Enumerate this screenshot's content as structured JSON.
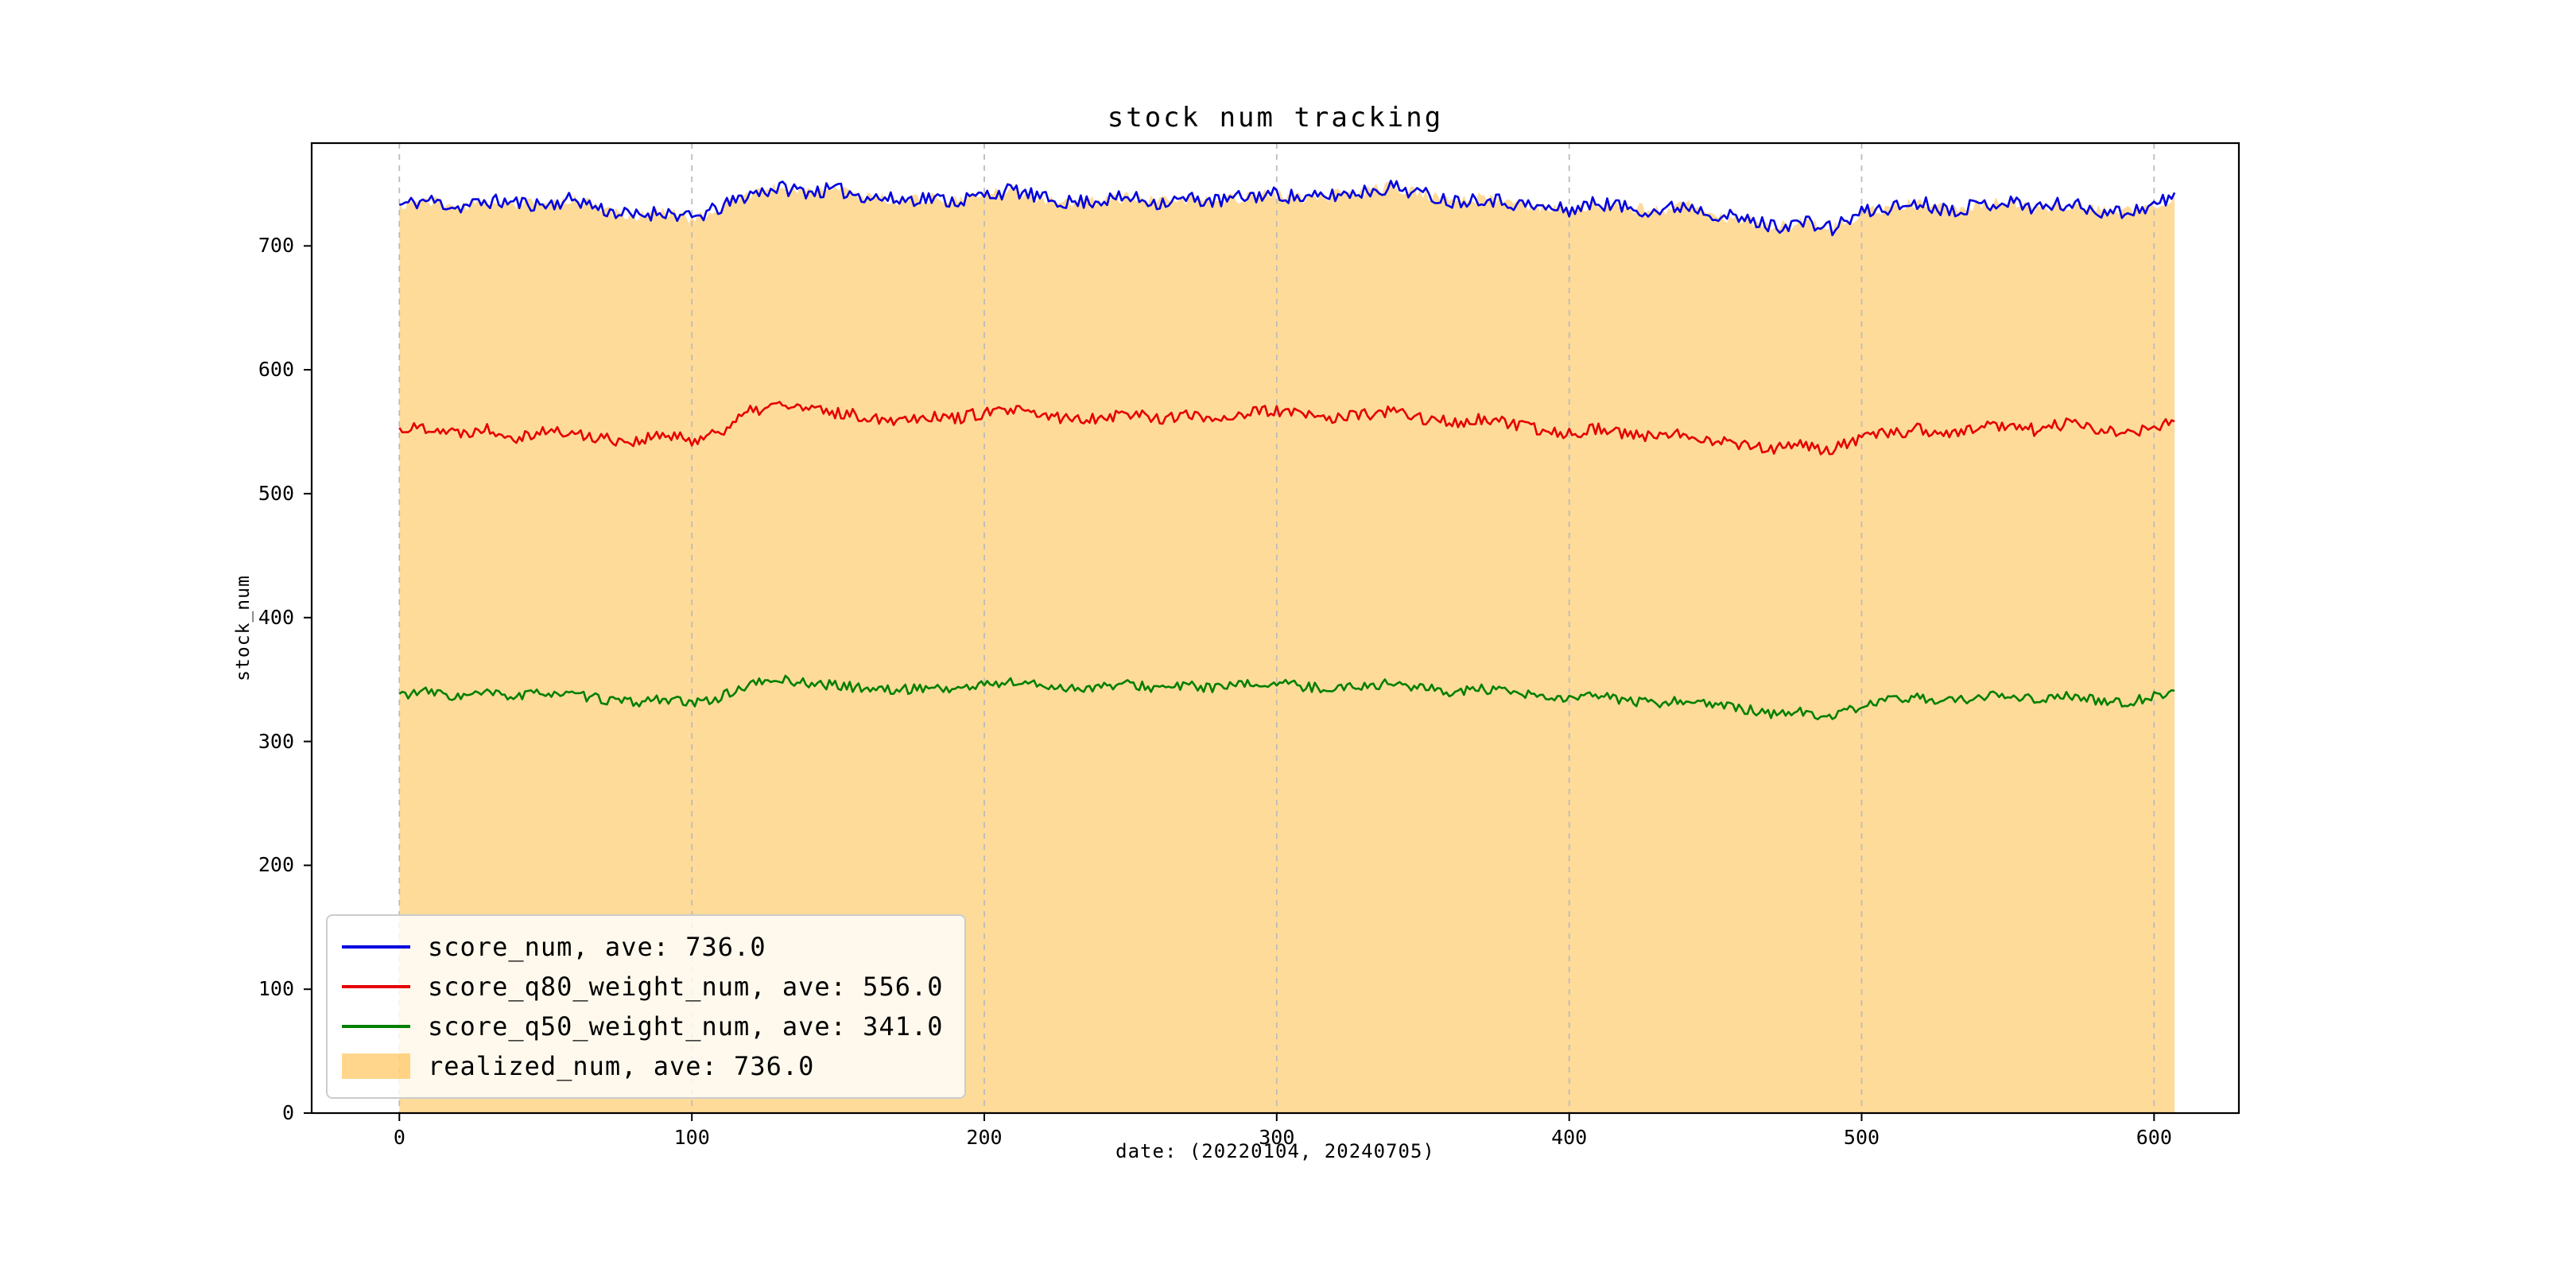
{
  "chart_data": {
    "type": "line",
    "title": "stock num tracking",
    "xlabel": "date: (20220104, 20240705)",
    "ylabel": "stock_num",
    "xlim": [
      -30,
      629
    ],
    "ylim": [
      0,
      783
    ],
    "xticks": [
      0,
      100,
      200,
      300,
      400,
      500,
      600
    ],
    "yticks": [
      0,
      100,
      200,
      300,
      400,
      500,
      600,
      700
    ],
    "x_range": [
      0,
      607
    ],
    "grid": {
      "axis": "x",
      "style": "dashed",
      "color": "#bcbcbc"
    },
    "frame_color": "#000000",
    "series": [
      {
        "name": "score_num, ave: 736.0",
        "average": 736.0,
        "color": "#0000e0",
        "noise": 6,
        "seed": 11,
        "control_points": [
          [
            0,
            733
          ],
          [
            10,
            737
          ],
          [
            20,
            731
          ],
          [
            30,
            736
          ],
          [
            40,
            735
          ],
          [
            50,
            733
          ],
          [
            60,
            738
          ],
          [
            70,
            729
          ],
          [
            80,
            724
          ],
          [
            90,
            728
          ],
          [
            100,
            722
          ],
          [
            110,
            731
          ],
          [
            120,
            742
          ],
          [
            130,
            747
          ],
          [
            140,
            744
          ],
          [
            150,
            745
          ],
          [
            160,
            740
          ],
          [
            170,
            737
          ],
          [
            180,
            739
          ],
          [
            190,
            736
          ],
          [
            200,
            741
          ],
          [
            210,
            745
          ],
          [
            220,
            738
          ],
          [
            230,
            735
          ],
          [
            240,
            737
          ],
          [
            250,
            739
          ],
          [
            260,
            735
          ],
          [
            270,
            738
          ],
          [
            280,
            736
          ],
          [
            290,
            740
          ],
          [
            300,
            742
          ],
          [
            310,
            738
          ],
          [
            320,
            741
          ],
          [
            330,
            744
          ],
          [
            340,
            748
          ],
          [
            350,
            742
          ],
          [
            360,
            736
          ],
          [
            370,
            739
          ],
          [
            380,
            735
          ],
          [
            390,
            731
          ],
          [
            400,
            729
          ],
          [
            410,
            735
          ],
          [
            420,
            731
          ],
          [
            430,
            728
          ],
          [
            440,
            733
          ],
          [
            450,
            726
          ],
          [
            460,
            721
          ],
          [
            470,
            716
          ],
          [
            480,
            719
          ],
          [
            490,
            714
          ],
          [
            500,
            727
          ],
          [
            510,
            731
          ],
          [
            520,
            735
          ],
          [
            530,
            729
          ],
          [
            540,
            733
          ],
          [
            550,
            736
          ],
          [
            560,
            731
          ],
          [
            570,
            734
          ],
          [
            580,
            729
          ],
          [
            590,
            727
          ],
          [
            600,
            733
          ],
          [
            607,
            740
          ]
        ]
      },
      {
        "name": "score_q80_weight_num, ave: 556.0",
        "average": 556.0,
        "color": "#e60000",
        "noise": 5,
        "seed": 22,
        "control_points": [
          [
            0,
            552
          ],
          [
            10,
            554
          ],
          [
            20,
            549
          ],
          [
            30,
            553
          ],
          [
            40,
            546
          ],
          [
            50,
            551
          ],
          [
            60,
            548
          ],
          [
            70,
            545
          ],
          [
            80,
            542
          ],
          [
            90,
            547
          ],
          [
            100,
            543
          ],
          [
            110,
            551
          ],
          [
            120,
            566
          ],
          [
            130,
            572
          ],
          [
            140,
            568
          ],
          [
            150,
            565
          ],
          [
            160,
            562
          ],
          [
            170,
            560
          ],
          [
            180,
            563
          ],
          [
            190,
            561
          ],
          [
            200,
            565
          ],
          [
            210,
            567
          ],
          [
            220,
            563
          ],
          [
            230,
            560
          ],
          [
            240,
            562
          ],
          [
            250,
            565
          ],
          [
            260,
            561
          ],
          [
            270,
            563
          ],
          [
            280,
            561
          ],
          [
            290,
            565
          ],
          [
            300,
            567
          ],
          [
            310,
            563
          ],
          [
            320,
            561
          ],
          [
            330,
            564
          ],
          [
            340,
            566
          ],
          [
            350,
            561
          ],
          [
            360,
            557
          ],
          [
            370,
            560
          ],
          [
            380,
            556
          ],
          [
            390,
            551
          ],
          [
            400,
            549
          ],
          [
            410,
            553
          ],
          [
            420,
            548
          ],
          [
            430,
            545
          ],
          [
            440,
            549
          ],
          [
            450,
            543
          ],
          [
            460,
            540
          ],
          [
            470,
            536
          ],
          [
            480,
            539
          ],
          [
            490,
            535
          ],
          [
            500,
            545
          ],
          [
            510,
            549
          ],
          [
            520,
            552
          ],
          [
            530,
            548
          ],
          [
            540,
            553
          ],
          [
            550,
            556
          ],
          [
            560,
            551
          ],
          [
            570,
            557
          ],
          [
            580,
            552
          ],
          [
            590,
            549
          ],
          [
            600,
            553
          ],
          [
            607,
            557
          ]
        ]
      },
      {
        "name": "score_q50_weight_num, ave: 341.0",
        "average": 341.0,
        "color": "#008000",
        "noise": 4,
        "seed": 33,
        "control_points": [
          [
            0,
            338
          ],
          [
            10,
            340
          ],
          [
            20,
            336
          ],
          [
            30,
            339
          ],
          [
            40,
            336
          ],
          [
            50,
            340
          ],
          [
            60,
            337
          ],
          [
            70,
            334
          ],
          [
            80,
            331
          ],
          [
            90,
            335
          ],
          [
            100,
            330
          ],
          [
            110,
            336
          ],
          [
            120,
            346
          ],
          [
            130,
            350
          ],
          [
            140,
            347
          ],
          [
            150,
            345
          ],
          [
            160,
            343
          ],
          [
            170,
            341
          ],
          [
            180,
            344
          ],
          [
            190,
            342
          ],
          [
            200,
            346
          ],
          [
            210,
            348
          ],
          [
            220,
            345
          ],
          [
            230,
            343
          ],
          [
            240,
            344
          ],
          [
            250,
            346
          ],
          [
            260,
            343
          ],
          [
            270,
            345
          ],
          [
            280,
            343
          ],
          [
            290,
            346
          ],
          [
            300,
            347
          ],
          [
            310,
            344
          ],
          [
            320,
            343
          ],
          [
            330,
            345
          ],
          [
            340,
            347
          ],
          [
            350,
            343
          ],
          [
            360,
            340
          ],
          [
            370,
            342
          ],
          [
            380,
            339
          ],
          [
            390,
            336
          ],
          [
            400,
            334
          ],
          [
            410,
            337
          ],
          [
            420,
            333
          ],
          [
            430,
            330
          ],
          [
            440,
            334
          ],
          [
            450,
            329
          ],
          [
            460,
            326
          ],
          [
            470,
            322
          ],
          [
            480,
            324
          ],
          [
            490,
            319
          ],
          [
            500,
            329
          ],
          [
            510,
            333
          ],
          [
            520,
            336
          ],
          [
            530,
            332
          ],
          [
            540,
            335
          ],
          [
            550,
            338
          ],
          [
            560,
            334
          ],
          [
            570,
            337
          ],
          [
            580,
            333
          ],
          [
            590,
            331
          ],
          [
            600,
            337
          ],
          [
            607,
            340
          ]
        ]
      }
    ],
    "fill": {
      "name": "realized_num, ave: 736.0",
      "average": 736.0,
      "color": "#ffa500",
      "opacity": 0.4,
      "noise": 5,
      "seed": 44,
      "follows_series": 0,
      "baseline": 0
    },
    "legend": {
      "position": "lower left",
      "entries": [
        {
          "label": "score_num, ave: 736.0",
          "swatch": "line",
          "color": "#0000e0"
        },
        {
          "label": "score_q80_weight_num, ave: 556.0",
          "swatch": "line",
          "color": "#e60000"
        },
        {
          "label": "score_q50_weight_num, ave: 341.0",
          "swatch": "line",
          "color": "#008000"
        },
        {
          "label": "realized_num, ave: 736.0",
          "swatch": "patch",
          "color": "#ffa500",
          "opacity": 0.45
        }
      ]
    }
  }
}
